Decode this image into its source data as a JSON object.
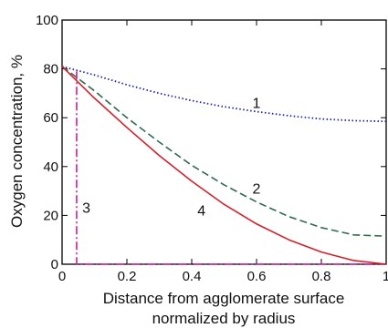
{
  "chart_data": {
    "type": "line",
    "xlabel_line1": "Distance from agglomerate surface",
    "xlabel_line2": "normalized by radius",
    "ylabel": "Oxygen concentration, %",
    "xlim": [
      0,
      1
    ],
    "ylim": [
      0,
      100
    ],
    "xticks": [
      0,
      0.2,
      0.4,
      0.6,
      0.8,
      1
    ],
    "yticks": [
      0,
      20,
      40,
      60,
      80,
      100
    ],
    "xtick_labels": [
      "0",
      "0.2",
      "0.4",
      "0.6",
      "0.8",
      "1"
    ],
    "ytick_labels": [
      "0",
      "20",
      "40",
      "60",
      "80",
      "100"
    ],
    "grid": false,
    "series": [
      {
        "name": "1",
        "color": "#1f2a9c",
        "style": "dotted",
        "x": [
          0,
          0.1,
          0.2,
          0.3,
          0.4,
          0.5,
          0.6,
          0.7,
          0.8,
          0.9,
          1.0
        ],
        "y": [
          81,
          77.5,
          73.5,
          70,
          67,
          64.5,
          62.5,
          60.8,
          59.5,
          58.8,
          58.5
        ],
        "label_at": [
          0.6,
          64
        ]
      },
      {
        "name": "2",
        "color": "#2f6b4f",
        "style": "dashed",
        "x": [
          0,
          0.1,
          0.2,
          0.3,
          0.4,
          0.5,
          0.6,
          0.7,
          0.8,
          0.9,
          1.0
        ],
        "y": [
          81,
          71,
          60,
          50,
          40.5,
          32.5,
          25.5,
          19.5,
          15,
          12,
          11.5
        ],
        "label_at": [
          0.6,
          29
        ]
      },
      {
        "name": "3",
        "color": "#cc1f9e",
        "style": "dashdot",
        "x": [
          0.045,
          0.045,
          1.0
        ],
        "y": [
          79,
          0,
          0
        ],
        "label_at": [
          0.075,
          21
        ]
      },
      {
        "name": "4",
        "color": "#d4202a",
        "style": "solid",
        "x": [
          0,
          0.1,
          0.2,
          0.3,
          0.4,
          0.5,
          0.6,
          0.7,
          0.8,
          0.9,
          1.0
        ],
        "y": [
          81,
          68,
          56,
          44.5,
          34,
          24.5,
          16.5,
          10,
          5,
          1.5,
          0
        ],
        "label_at": [
          0.43,
          20
        ]
      }
    ]
  }
}
